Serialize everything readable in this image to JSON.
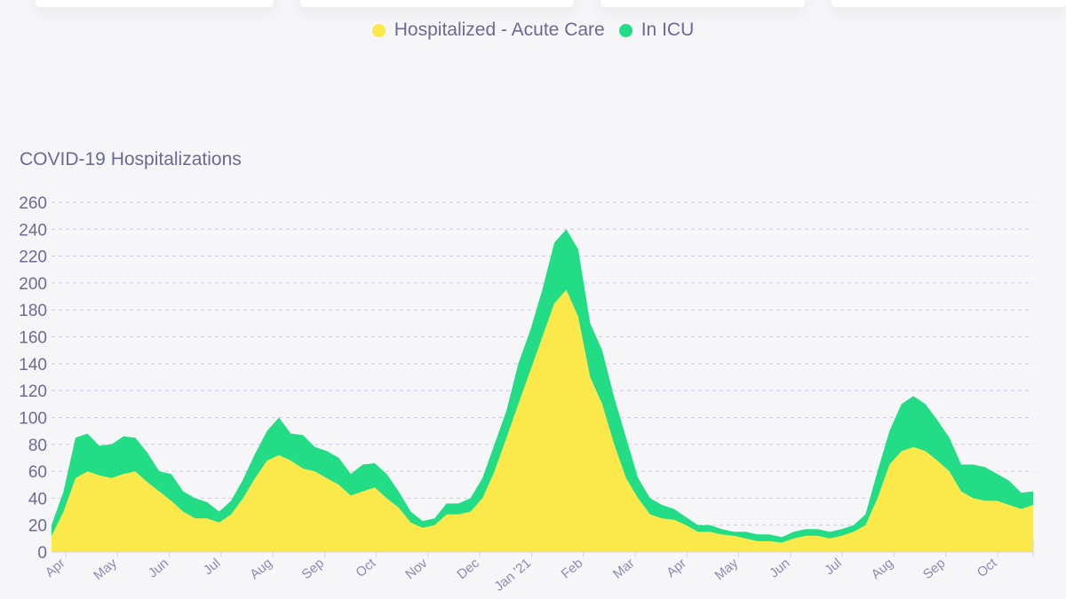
{
  "legend": {
    "acute_label": "Hospitalized - Acute Care",
    "icu_label": "In ICU",
    "acute_color": "#fbe94c",
    "icu_color": "#22dc86"
  },
  "chart_data": {
    "type": "area",
    "stacked": true,
    "title": "COVID-19 Hospitalizations",
    "xlabel": "",
    "ylabel": "",
    "ylim": [
      0,
      260
    ],
    "yticks": [
      0,
      20,
      40,
      60,
      80,
      100,
      120,
      140,
      160,
      180,
      200,
      220,
      240,
      260
    ],
    "grid": true,
    "legend_position": "top-center",
    "x_tick_labels": [
      "Apr",
      "May",
      "Jun",
      "Jul",
      "Aug",
      "Sep",
      "Oct",
      "Nov",
      "Dec",
      "Jan '21",
      "Feb",
      "Mar",
      "Apr",
      "May",
      "Jun",
      "Jul",
      "Aug",
      "Sep",
      "Oct"
    ],
    "x_unit": "weeks from start (~Mar 25, 2020)",
    "series": [
      {
        "name": "Hospitalized - Acute Care",
        "color": "#fbe94c",
        "x": [
          0,
          1,
          2,
          3,
          4,
          5,
          6,
          7,
          8,
          9,
          10,
          11,
          12,
          13,
          14,
          15,
          16,
          17,
          18,
          19,
          20,
          21,
          22,
          23,
          24,
          25,
          26,
          27,
          28,
          29,
          30,
          31,
          32,
          33,
          34,
          35,
          36,
          37,
          38,
          39,
          40,
          41,
          42,
          43,
          44,
          45,
          46,
          47,
          48,
          49,
          50,
          51,
          52,
          53,
          54,
          55,
          56,
          57,
          58,
          59,
          60,
          61,
          62,
          63,
          64,
          65,
          66,
          67,
          68,
          69,
          70,
          71,
          72,
          73,
          74,
          75,
          76,
          77,
          78,
          79,
          80,
          81,
          82
        ],
        "values": [
          12,
          30,
          55,
          60,
          57,
          55,
          58,
          60,
          52,
          45,
          38,
          30,
          25,
          25,
          22,
          28,
          40,
          55,
          68,
          72,
          68,
          62,
          60,
          55,
          50,
          42,
          45,
          48,
          40,
          33,
          22,
          18,
          20,
          28,
          28,
          30,
          40,
          60,
          85,
          110,
          135,
          160,
          185,
          195,
          175,
          130,
          110,
          80,
          55,
          40,
          28,
          25,
          24,
          20,
          15,
          15,
          13,
          12,
          10,
          8,
          8,
          7,
          10,
          12,
          12,
          10,
          12,
          15,
          20,
          40,
          65,
          75,
          78,
          75,
          68,
          60,
          45,
          40,
          38,
          38,
          35,
          32,
          35
        ]
      },
      {
        "name": "In ICU",
        "color": "#22dc86",
        "x": [
          0,
          1,
          2,
          3,
          4,
          5,
          6,
          7,
          8,
          9,
          10,
          11,
          12,
          13,
          14,
          15,
          16,
          17,
          18,
          19,
          20,
          21,
          22,
          23,
          24,
          25,
          26,
          27,
          28,
          29,
          30,
          31,
          32,
          33,
          34,
          35,
          36,
          37,
          38,
          39,
          40,
          41,
          42,
          43,
          44,
          45,
          46,
          47,
          48,
          49,
          50,
          51,
          52,
          53,
          54,
          55,
          56,
          57,
          58,
          59,
          60,
          61,
          62,
          63,
          64,
          65,
          66,
          67,
          68,
          69,
          70,
          71,
          72,
          73,
          74,
          75,
          76,
          77,
          78,
          79,
          80,
          81,
          82
        ],
        "values": [
          8,
          15,
          30,
          28,
          22,
          25,
          28,
          25,
          22,
          15,
          20,
          15,
          15,
          12,
          8,
          10,
          14,
          18,
          22,
          28,
          20,
          25,
          18,
          20,
          20,
          16,
          20,
          18,
          18,
          12,
          8,
          5,
          5,
          8,
          8,
          10,
          15,
          20,
          20,
          30,
          30,
          35,
          45,
          45,
          50,
          40,
          40,
          35,
          30,
          15,
          12,
          10,
          8,
          6,
          5,
          5,
          4,
          3,
          5,
          5,
          5,
          4,
          5,
          5,
          5,
          5,
          5,
          5,
          8,
          20,
          25,
          35,
          38,
          35,
          30,
          25,
          20,
          25,
          25,
          20,
          18,
          12,
          10
        ]
      }
    ]
  }
}
